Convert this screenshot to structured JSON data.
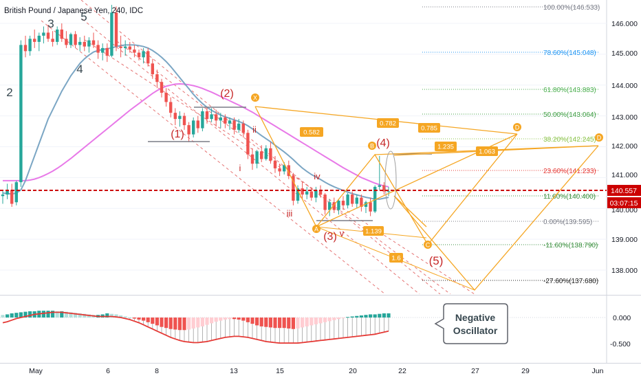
{
  "header": {
    "title": "British Pound / Japanese Yen, 240, IDC"
  },
  "price_axis": {
    "ticks": [
      "146.000",
      "145.000",
      "144.000",
      "143.000",
      "142.000",
      "141.000",
      "140.000",
      "139.000",
      "138.000"
    ],
    "current_price": "140.557",
    "countdown": "03:07:15"
  },
  "osc_axis": {
    "ticks": [
      "0.000",
      "-0.500"
    ]
  },
  "time_axis": {
    "ticks": [
      "May",
      "6",
      "8",
      "13",
      "15",
      "20",
      "22",
      "27",
      "29",
      "Jun"
    ]
  },
  "fib_levels": [
    {
      "label": "100.00%(146.533)",
      "color": "#787b86"
    },
    {
      "label": "78.60%(145.048)",
      "color": "#2196f3"
    },
    {
      "label": "61.80%(143.883)",
      "color": "#4caf50"
    },
    {
      "label": "50.00%(143.064)",
      "color": "#43a047"
    },
    {
      "label": "38.20%(142.245)",
      "color": "#8bc34a"
    },
    {
      "label": "23.60%(141.233)",
      "color": "#e53935"
    },
    {
      "label": "11.60%(140.400)",
      "color": "#388e3c"
    },
    {
      "label": "0.00%(139.595)",
      "color": "#787b86"
    },
    {
      "label": "-11.60%(138.790)",
      "color": "#388e3c"
    },
    {
      "label": "-27.60%(137.680)",
      "color": "#212121"
    }
  ],
  "wave_labels": {
    "w2": "2",
    "w3": "3",
    "w4": "4",
    "w5": "5",
    "c1": "(1)",
    "c2": "(2)",
    "c3": "(3)",
    "c4": "(4)",
    "c5": "(5)",
    "si": "i",
    "sii": "ii",
    "siii": "iii",
    "siv": "iv",
    "sv": "v"
  },
  "harmonic": {
    "points": [
      "X",
      "A",
      "B",
      "C",
      "D",
      "D"
    ],
    "ratios": [
      "0.582",
      "0.782",
      "0.785",
      "1.235",
      "1.063",
      "1.139",
      "1.6"
    ]
  },
  "callout": {
    "line1": "Negative",
    "line2": "Oscillator"
  },
  "colors": {
    "up": "#26a69a",
    "down": "#ef5350",
    "ma_fast": "#7ba6c4",
    "ma_slow": "#e879e8",
    "harmonic": "#f5a623",
    "price_line": "#cc0000",
    "wave_label": "#c62828",
    "channel": "#e57373"
  },
  "chart_data": {
    "type": "candlestick",
    "title": "British Pound / Japanese Yen, 240, IDC",
    "price_scale": {
      "min": 137.0,
      "max": 146.5
    },
    "candles": [
      [
        140.4,
        140.6,
        140.15,
        140.45
      ],
      [
        140.45,
        140.8,
        140.3,
        140.6
      ],
      [
        140.6,
        140.8,
        140.05,
        140.15
      ],
      [
        140.2,
        140.9,
        140.1,
        140.85
      ],
      [
        140.85,
        145.45,
        140.7,
        145.3
      ],
      [
        145.3,
        145.6,
        144.9,
        145.1
      ],
      [
        145.1,
        145.6,
        144.95,
        145.5
      ],
      [
        145.5,
        145.8,
        145.2,
        145.4
      ],
      [
        145.4,
        145.7,
        145.1,
        145.6
      ],
      [
        145.6,
        145.9,
        145.35,
        145.7
      ],
      [
        145.7,
        145.95,
        145.4,
        145.5
      ],
      [
        145.5,
        145.75,
        145.25,
        145.4
      ],
      [
        145.4,
        145.9,
        145.3,
        145.8
      ],
      [
        145.8,
        146.0,
        145.4,
        145.5
      ],
      [
        145.5,
        145.75,
        145.2,
        145.3
      ],
      [
        145.3,
        145.7,
        145.2,
        145.65
      ],
      [
        145.65,
        145.75,
        145.2,
        145.3
      ],
      [
        145.3,
        145.55,
        145.1,
        145.4
      ],
      [
        145.4,
        145.6,
        145.1,
        145.25
      ],
      [
        145.25,
        145.55,
        145.05,
        145.45
      ],
      [
        145.45,
        145.7,
        145.2,
        145.3
      ],
      [
        145.3,
        145.45,
        144.85,
        145.05
      ],
      [
        145.05,
        145.35,
        144.8,
        145.2
      ],
      [
        145.2,
        145.35,
        144.75,
        144.95
      ],
      [
        144.95,
        146.6,
        144.9,
        146.35
      ],
      [
        146.35,
        146.55,
        145.1,
        145.25
      ],
      [
        145.25,
        145.6,
        144.9,
        145.2
      ],
      [
        145.2,
        145.45,
        144.95,
        145.25
      ],
      [
        145.25,
        145.4,
        145.05,
        145.15
      ],
      [
        145.15,
        145.3,
        144.9,
        145.05
      ],
      [
        145.05,
        145.15,
        144.8,
        144.9
      ],
      [
        144.9,
        145.2,
        144.7,
        145.1
      ],
      [
        145.1,
        145.2,
        144.6,
        144.7
      ],
      [
        144.7,
        144.85,
        144.2,
        144.35
      ],
      [
        144.35,
        144.5,
        143.9,
        144.1
      ],
      [
        144.1,
        144.2,
        143.6,
        143.75
      ],
      [
        143.75,
        143.9,
        143.3,
        143.45
      ],
      [
        143.45,
        143.6,
        142.95,
        143.1
      ],
      [
        143.1,
        143.25,
        142.7,
        142.9
      ],
      [
        142.9,
        143.15,
        142.65,
        143.0
      ],
      [
        143.0,
        143.1,
        142.55,
        142.7
      ],
      [
        142.7,
        142.8,
        142.15,
        142.4
      ],
      [
        142.4,
        142.95,
        142.3,
        142.85
      ],
      [
        142.85,
        143.0,
        142.45,
        142.6
      ],
      [
        142.6,
        143.25,
        142.5,
        143.15
      ],
      [
        143.15,
        143.3,
        142.75,
        142.9
      ],
      [
        142.9,
        143.25,
        142.8,
        143.05
      ],
      [
        143.05,
        143.2,
        142.65,
        142.85
      ],
      [
        142.85,
        143.1,
        142.6,
        142.95
      ],
      [
        142.95,
        143.05,
        142.6,
        142.75
      ],
      [
        142.75,
        142.95,
        142.55,
        142.85
      ],
      [
        142.85,
        142.95,
        142.4,
        142.55
      ],
      [
        142.55,
        142.9,
        142.45,
        142.75
      ],
      [
        142.75,
        142.85,
        142.3,
        142.45
      ],
      [
        142.45,
        142.55,
        141.6,
        141.75
      ],
      [
        141.75,
        141.95,
        141.25,
        141.45
      ],
      [
        141.45,
        141.9,
        141.3,
        141.85
      ],
      [
        141.85,
        142.05,
        141.5,
        141.6
      ],
      [
        141.6,
        142.05,
        141.55,
        141.95
      ],
      [
        141.95,
        142.15,
        141.45,
        141.55
      ],
      [
        141.55,
        141.7,
        141.15,
        141.3
      ],
      [
        141.3,
        141.45,
        141.05,
        141.2
      ],
      [
        141.2,
        141.5,
        141.1,
        141.4
      ],
      [
        141.4,
        141.55,
        140.95,
        141.05
      ],
      [
        141.05,
        141.15,
        140.1,
        140.25
      ],
      [
        140.25,
        140.75,
        140.15,
        140.65
      ],
      [
        140.65,
        140.85,
        140.3,
        140.45
      ],
      [
        140.45,
        140.7,
        140.3,
        140.55
      ],
      [
        140.55,
        140.65,
        140.25,
        140.35
      ],
      [
        140.35,
        140.7,
        140.2,
        140.6
      ],
      [
        140.6,
        140.75,
        140.35,
        140.45
      ],
      [
        140.45,
        140.5,
        139.8,
        139.95
      ],
      [
        139.95,
        140.3,
        139.75,
        140.2
      ],
      [
        140.2,
        140.35,
        139.85,
        139.95
      ],
      [
        139.95,
        140.3,
        139.8,
        140.25
      ],
      [
        140.25,
        140.4,
        139.95,
        140.1
      ],
      [
        140.1,
        140.5,
        140.0,
        140.45
      ],
      [
        140.45,
        140.55,
        140.05,
        140.15
      ],
      [
        140.15,
        140.45,
        140.0,
        140.35
      ],
      [
        140.35,
        140.45,
        139.9,
        140.05
      ],
      [
        140.05,
        140.25,
        139.85,
        140.2
      ],
      [
        140.2,
        140.35,
        139.75,
        139.9
      ],
      [
        139.9,
        140.75,
        139.85,
        140.7
      ],
      [
        140.7,
        141.7,
        140.6,
        140.75
      ],
      [
        140.75,
        140.85,
        140.45,
        140.55
      ],
      [
        140.55,
        140.7,
        140.4,
        140.557
      ]
    ],
    "ma_fast": [
      140.5,
      140.48,
      140.47,
      140.5,
      140.6,
      140.9,
      141.3,
      141.7,
      142.1,
      142.5,
      142.9,
      143.2,
      143.5,
      143.8,
      144.05,
      144.3,
      144.5,
      144.7,
      144.85,
      144.97,
      145.07,
      145.12,
      145.15,
      145.18,
      145.2,
      145.25,
      145.28,
      145.3,
      145.3,
      145.3,
      145.28,
      145.25,
      145.2,
      145.12,
      145.02,
      144.9,
      144.76,
      144.6,
      144.42,
      144.24,
      144.06,
      143.88,
      143.7,
      143.54,
      143.4,
      143.28,
      143.18,
      143.1,
      143.03,
      142.97,
      142.92,
      142.87,
      142.82,
      142.76,
      142.68,
      142.58,
      142.47,
      142.36,
      142.26,
      142.16,
      142.05,
      141.94,
      141.83,
      141.71,
      141.58,
      141.44,
      141.31,
      141.2,
      141.1,
      141.02,
      140.94,
      140.85,
      140.77,
      140.7,
      140.64,
      140.58,
      140.53,
      140.48,
      140.44,
      140.4,
      140.36,
      140.33,
      140.3,
      140.3,
      140.33,
      140.36
    ],
    "ma_slow": [
      140.9,
      140.9,
      140.9,
      140.9,
      140.9,
      140.9,
      140.92,
      140.95,
      141.0,
      141.06,
      141.13,
      141.21,
      141.3,
      141.4,
      141.51,
      141.62,
      141.74,
      141.86,
      141.98,
      142.1,
      142.22,
      142.34,
      142.46,
      142.58,
      142.7,
      142.82,
      142.94,
      143.06,
      143.18,
      143.29,
      143.4,
      143.51,
      143.62,
      143.73,
      143.82,
      143.9,
      143.96,
      144.0,
      144.03,
      144.04,
      144.03,
      144.01,
      143.98,
      143.94,
      143.89,
      143.83,
      143.77,
      143.7,
      143.63,
      143.56,
      143.49,
      143.42,
      143.35,
      143.28,
      143.2,
      143.12,
      143.03,
      142.94,
      142.85,
      142.76,
      142.67,
      142.58,
      142.49,
      142.4,
      142.31,
      142.22,
      142.13,
      142.04,
      141.95,
      141.86,
      141.77,
      141.68,
      141.59,
      141.5,
      141.41,
      141.32,
      141.24,
      141.16,
      141.08,
      141.0,
      140.94,
      140.88,
      140.82,
      140.77,
      140.73,
      140.7
    ],
    "oscillator": {
      "scale": {
        "min": -0.6,
        "max": 0.2
      },
      "histogram": [
        0.05,
        0.06,
        0.08,
        0.09,
        0.1,
        0.11,
        0.12,
        0.12,
        0.13,
        0.13,
        0.13,
        0.13,
        0.12,
        0.12,
        0.11,
        0.1,
        0.09,
        0.08,
        0.07,
        0.06,
        0.05,
        0.05,
        0.06,
        0.08,
        0.07,
        0.06,
        0.04,
        0.02,
        0.0,
        -0.02,
        -0.04,
        -0.06,
        -0.09,
        -0.12,
        -0.15,
        -0.18,
        -0.2,
        -0.22,
        -0.23,
        -0.24,
        -0.24,
        -0.23,
        -0.21,
        -0.19,
        -0.17,
        -0.14,
        -0.11,
        -0.08,
        -0.06,
        -0.04,
        -0.03,
        -0.03,
        -0.04,
        -0.06,
        -0.09,
        -0.12,
        -0.15,
        -0.17,
        -0.18,
        -0.19,
        -0.2,
        -0.2,
        -0.2,
        -0.21,
        -0.22,
        -0.21,
        -0.19,
        -0.17,
        -0.15,
        -0.13,
        -0.11,
        -0.09,
        -0.07,
        -0.05,
        -0.03,
        -0.01,
        0.01,
        0.02,
        0.03,
        0.04,
        0.05,
        0.06,
        0.06,
        0.07,
        0.08,
        0.08
      ],
      "signal": [
        -0.1,
        -0.08,
        -0.05,
        -0.02,
        0.0,
        0.02,
        0.04,
        0.06,
        0.07,
        0.08,
        0.09,
        0.1,
        0.1,
        0.1,
        0.09,
        0.08,
        0.07,
        0.06,
        0.05,
        0.04,
        0.03,
        0.02,
        0.02,
        0.02,
        0.02,
        0.01,
        0.0,
        -0.02,
        -0.04,
        -0.07,
        -0.1,
        -0.14,
        -0.18,
        -0.22,
        -0.26,
        -0.3,
        -0.34,
        -0.38,
        -0.41,
        -0.44,
        -0.46,
        -0.47,
        -0.48,
        -0.48,
        -0.47,
        -0.46,
        -0.44,
        -0.42,
        -0.4,
        -0.38,
        -0.37,
        -0.36,
        -0.36,
        -0.37,
        -0.38,
        -0.4,
        -0.42,
        -0.44,
        -0.46,
        -0.47,
        -0.48,
        -0.49,
        -0.49,
        -0.49,
        -0.49,
        -0.49,
        -0.48,
        -0.47,
        -0.46,
        -0.45,
        -0.44,
        -0.43,
        -0.42,
        -0.41,
        -0.4,
        -0.39,
        -0.38,
        -0.37,
        -0.36,
        -0.35,
        -0.34,
        -0.33,
        -0.32,
        -0.3,
        -0.28,
        -0.26
      ]
    }
  }
}
